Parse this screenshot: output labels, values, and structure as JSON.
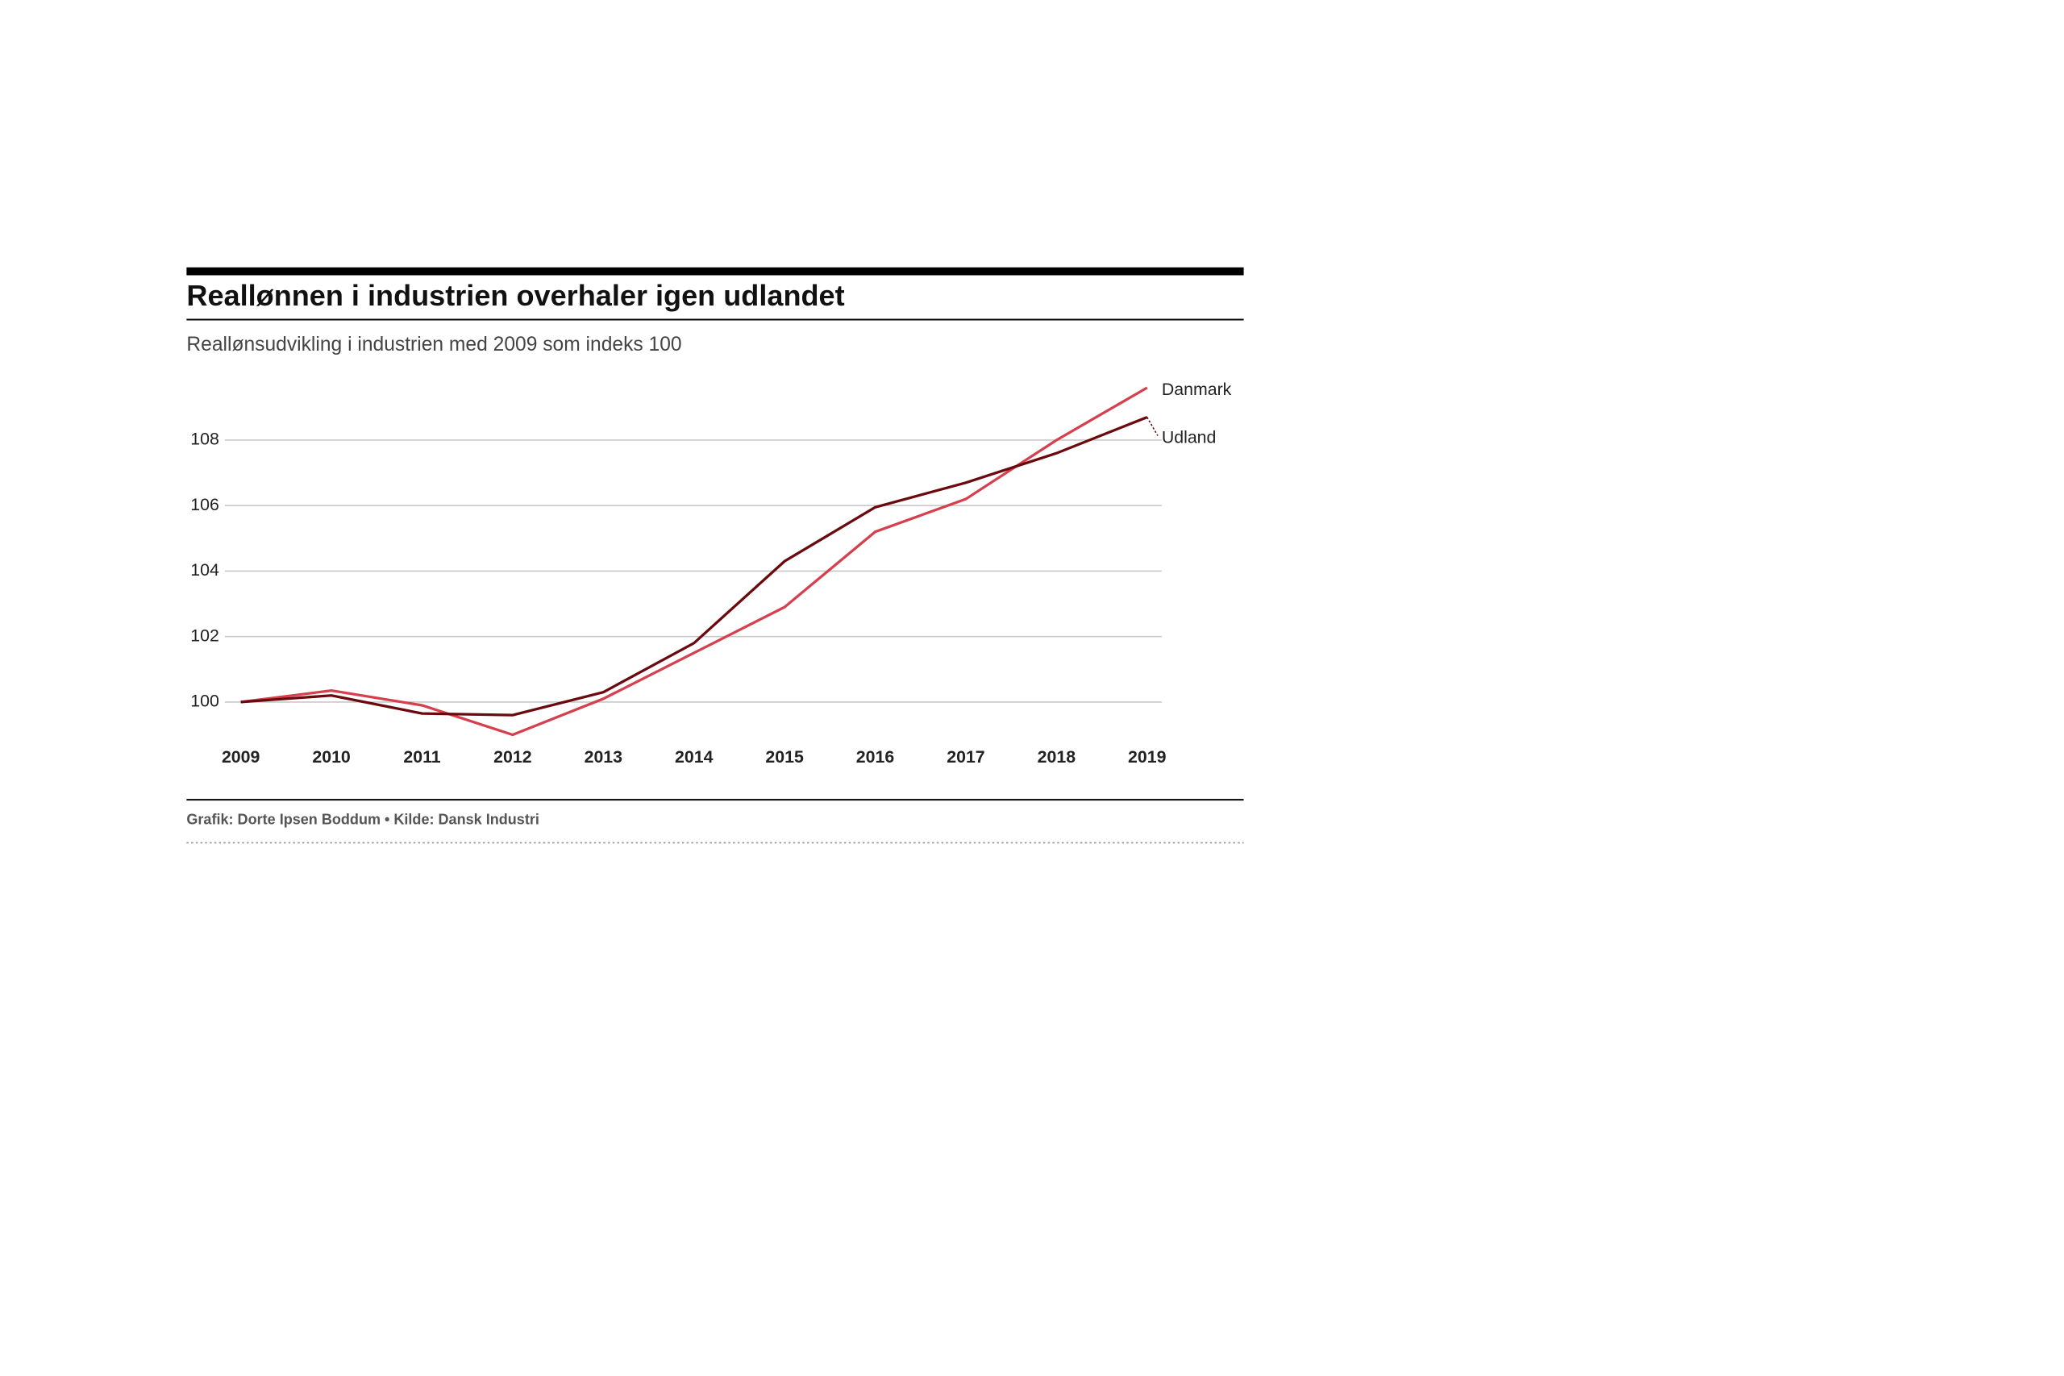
{
  "chart_data": {
    "type": "line",
    "title": "Reallønnen i industrien overhaler igen udlandet",
    "subtitle": "Reallønsudvikling i industrien med 2009 som indeks 100",
    "source": "Grafik: Dorte Ipsen Boddum • Kilde: Dansk Industri",
    "categories": [
      "2009",
      "2010",
      "2011",
      "2012",
      "2013",
      "2014",
      "2015",
      "2016",
      "2017",
      "2018",
      "2019"
    ],
    "series": [
      {
        "name": "Danmark",
        "color": "#d6404e",
        "values": [
          100,
          100.35,
          99.9,
          99.0,
          100.1,
          101.5,
          102.9,
          105.2,
          106.2,
          108.0,
          109.6
        ]
      },
      {
        "name": "Udland",
        "color": "#6b0a0e",
        "values": [
          100,
          100.2,
          99.65,
          99.6,
          100.3,
          101.8,
          104.3,
          105.95,
          106.7,
          107.6,
          108.7
        ]
      }
    ],
    "ylim": [
      99,
      109.6
    ],
    "yticks": [
      100,
      102,
      104,
      106,
      108
    ],
    "grid": true
  }
}
